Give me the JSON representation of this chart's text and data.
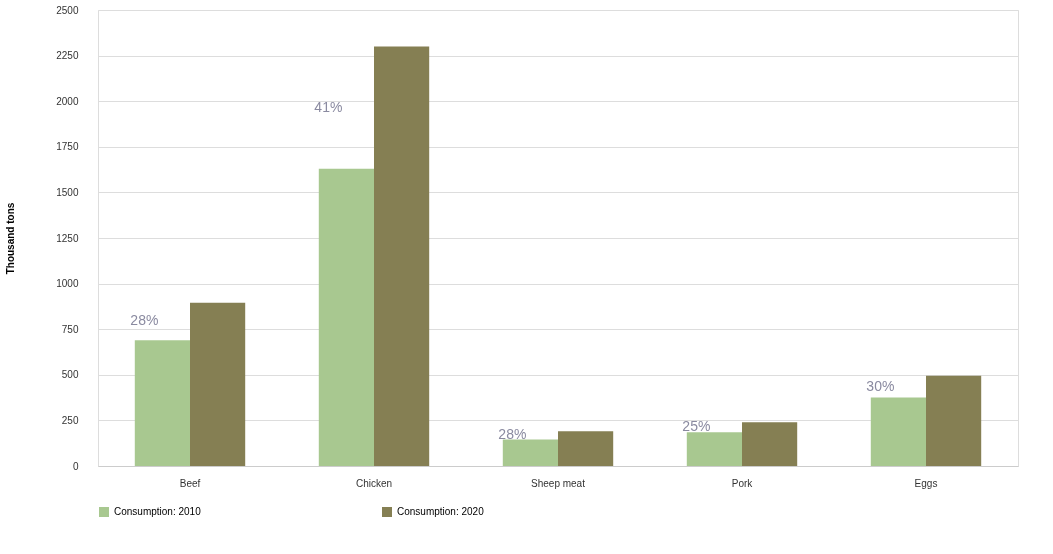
{
  "chart_data": {
    "type": "bar",
    "ylabel": "Thousand tons",
    "categories": [
      "Beef",
      "Chicken",
      "Sheep meat",
      "Pork",
      "Eggs"
    ],
    "series": [
      {
        "name": "Consumption: 2010",
        "color": "#a8c890",
        "values": [
          690,
          1630,
          145,
          185,
          375
        ]
      },
      {
        "name": "Consumption: 2020",
        "color": "#857f53",
        "values": [
          895,
          2300,
          190,
          240,
          495
        ]
      }
    ],
    "ylim": [
      0,
      2500
    ],
    "yticks": [
      0,
      250,
      500,
      750,
      1000,
      1250,
      1500,
      1750,
      2000,
      2250,
      2500
    ],
    "grid": "y",
    "legend": "bottom",
    "annotations": [
      "28%",
      "41%",
      "28%",
      "25%",
      "30%"
    ]
  }
}
